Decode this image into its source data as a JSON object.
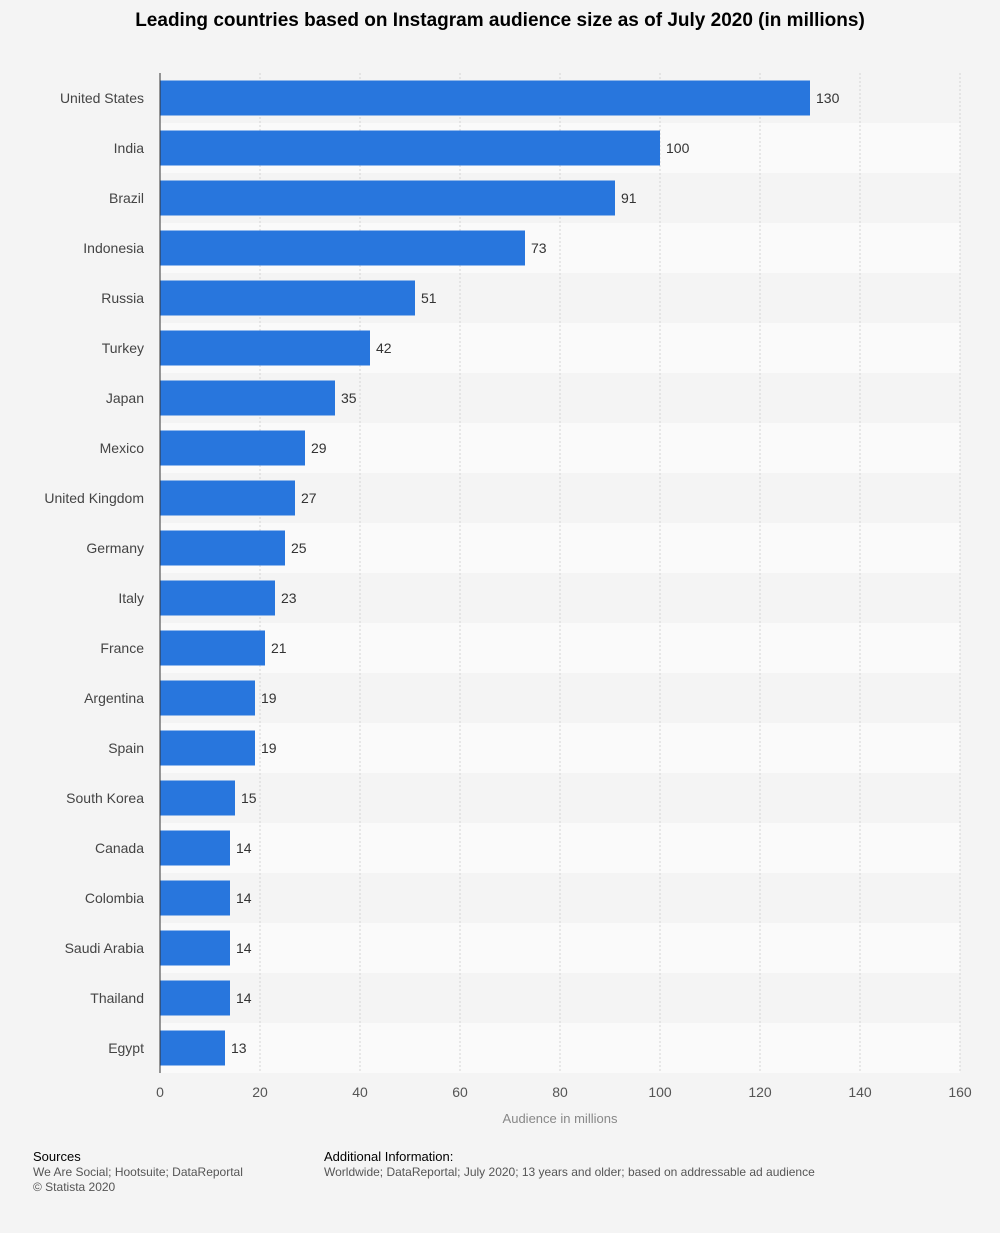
{
  "chart_data": {
    "type": "bar",
    "orientation": "horizontal",
    "title": "Leading countries based on Instagram audience size as of July 2020 (in millions)",
    "xlabel": "Audience in millions",
    "ylabel": "",
    "xlim": [
      0,
      160
    ],
    "ticks": [
      0,
      20,
      40,
      60,
      80,
      100,
      120,
      140,
      160
    ],
    "tick_labels": [
      "0",
      "20",
      "40",
      "60",
      "80",
      "100",
      "120",
      "140",
      "160"
    ],
    "grid": true,
    "categories": [
      "United States",
      "India",
      "Brazil",
      "Indonesia",
      "Russia",
      "Turkey",
      "Japan",
      "Mexico",
      "United Kingdom",
      "Germany",
      "Italy",
      "France",
      "Argentina",
      "Spain",
      "South Korea",
      "Canada",
      "Colombia",
      "Saudi Arabia",
      "Thailand",
      "Egypt"
    ],
    "values": [
      130,
      100,
      91,
      73,
      51,
      42,
      35,
      29,
      27,
      25,
      23,
      21,
      19,
      19,
      15,
      14,
      14,
      14,
      14,
      13
    ],
    "value_labels": [
      "130",
      "100",
      "91",
      "73",
      "51",
      "42",
      "35",
      "29",
      "27",
      "25",
      "23",
      "21",
      "19",
      "19",
      "15",
      "14",
      "14",
      "14",
      "14",
      "13"
    ],
    "bar_color": "#2876dd"
  },
  "footer": {
    "sources_heading": "Sources",
    "sources_text": "We Are Social; Hootsuite; DataReportal",
    "copyright": "© Statista 2020",
    "additional_heading": "Additional Information:",
    "additional_text": "Worldwide; DataReportal; July 2020; 13 years and older; based on addressable ad audience"
  }
}
